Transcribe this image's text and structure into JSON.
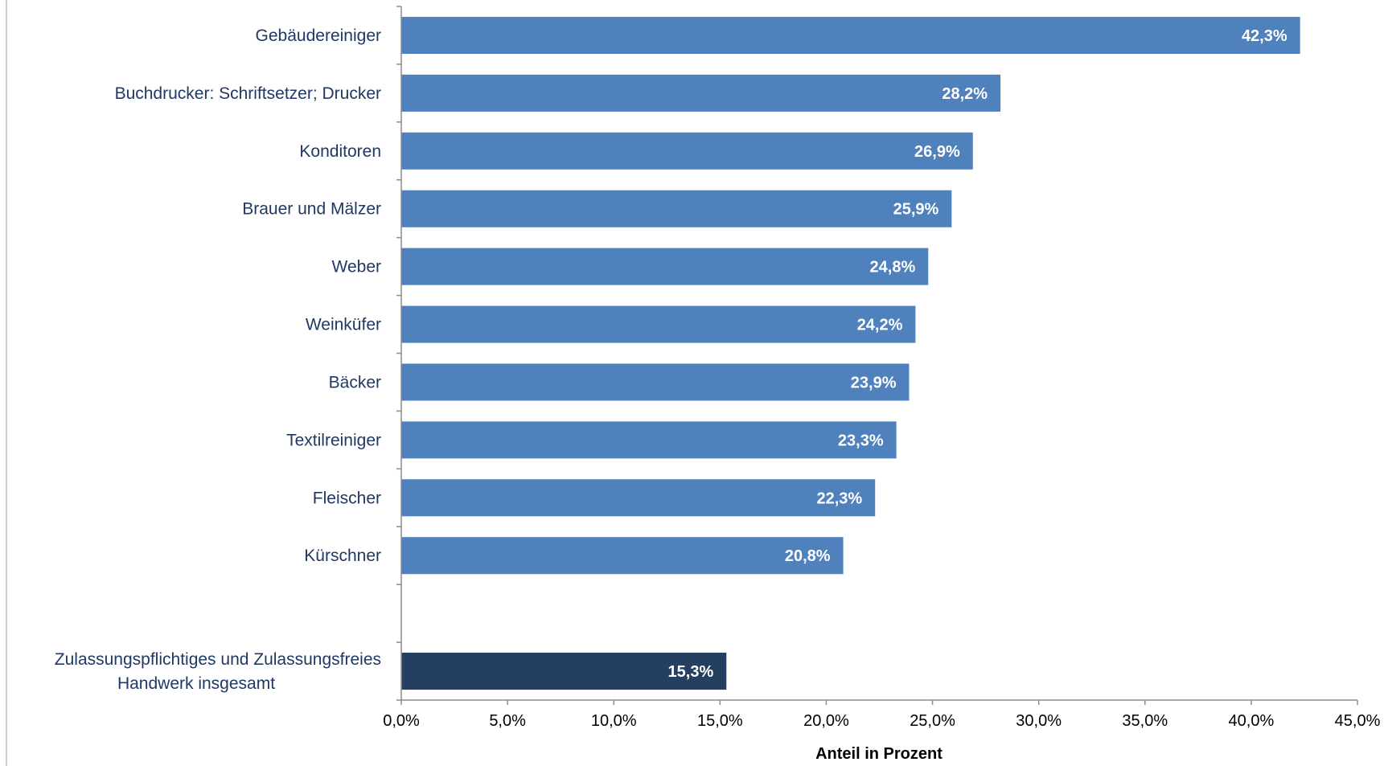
{
  "chart_data": {
    "type": "bar",
    "orientation": "horizontal",
    "categories": [
      "Gebäudereiniger",
      "Buchdrucker: Schriftsetzer; Drucker",
      "Konditoren",
      "Brauer und Mälzer",
      "Weber",
      "Weinküfer",
      "Bäcker",
      "Textilreiniger",
      "Fleischer",
      "Kürschner",
      "",
      "Zulassungspflichtiges und Zulassungsfreies Handwerk insgesamt"
    ],
    "category_lines": [
      [
        "Gebäudereiniger"
      ],
      [
        "Buchdrucker: Schriftsetzer; Drucker"
      ],
      [
        "Konditoren"
      ],
      [
        "Brauer und Mälzer"
      ],
      [
        "Weber"
      ],
      [
        "Weinküfer"
      ],
      [
        "Bäcker"
      ],
      [
        "Textilreiniger"
      ],
      [
        "Fleischer"
      ],
      [
        "Kürschner"
      ],
      [],
      [
        "Zulassungspflichtiges und Zulassungsfreies",
        "Handwerk insgesamt"
      ]
    ],
    "values": [
      42.3,
      28.2,
      26.9,
      25.9,
      24.8,
      24.2,
      23.9,
      23.3,
      22.3,
      20.8,
      null,
      15.3
    ],
    "value_labels": [
      "42,3%",
      "28,2%",
      "26,9%",
      "25,9%",
      "24,8%",
      "24,2%",
      "23,9%",
      "23,3%",
      "22,3%",
      "20,8%",
      "",
      "15,3%"
    ],
    "highlight_index": 11,
    "xlim": [
      0,
      45
    ],
    "xticks": [
      0,
      5,
      10,
      15,
      20,
      25,
      30,
      35,
      40,
      45
    ],
    "xtick_labels": [
      "0,0%",
      "5,0%",
      "10,0%",
      "15,0%",
      "20,0%",
      "25,0%",
      "30,0%",
      "35,0%",
      "40,0%",
      "45,0%"
    ],
    "xlabel": "Anteil in Prozent",
    "title": "",
    "grid": false,
    "legend": "none",
    "colors": {
      "bar": "#4f81bd",
      "highlight": "#243f60",
      "axis": "#8c8c8c",
      "label": "#1f3864"
    }
  }
}
